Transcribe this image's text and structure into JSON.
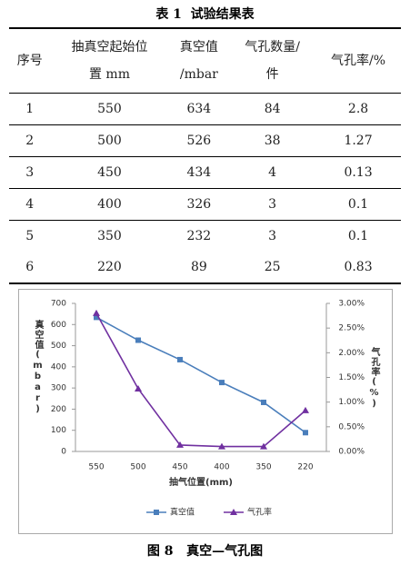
{
  "table_title": "表 1  试验结果表",
  "table": {
    "header": [
      [
        "序号"
      ],
      [
        "抽真空起始位",
        "置 mm"
      ],
      [
        "真空值",
        "/mbar"
      ],
      [
        "气孔数量/",
        "件"
      ],
      [
        "气孔率/%"
      ]
    ],
    "rows": [
      [
        1,
        550,
        634,
        84,
        2.8
      ],
      [
        2,
        500,
        526,
        38,
        1.27
      ],
      [
        3,
        450,
        434,
        4,
        0.13
      ],
      [
        4,
        400,
        326,
        3,
        0.1
      ],
      [
        5,
        350,
        232,
        3,
        0.1
      ],
      [
        6,
        220,
        89,
        25,
        0.83
      ]
    ]
  },
  "chart_data": {
    "type": "line",
    "categories": [
      "550",
      "500",
      "450",
      "400",
      "350",
      "220"
    ],
    "series": [
      {
        "name": "真空值",
        "color": "#4a7ebb",
        "marker": "square",
        "values": [
          634,
          526,
          434,
          326,
          232,
          89
        ]
      },
      {
        "name": "气孔率",
        "color": "#7030a0",
        "marker": "triangle",
        "axis": "y2",
        "values": [
          2.8,
          1.27,
          0.13,
          0.1,
          0.1,
          0.83
        ]
      }
    ],
    "ylim": [
      0,
      700
    ],
    "yticks": [
      0,
      100,
      200,
      300,
      400,
      500,
      600,
      700
    ],
    "y2lim": [
      0,
      3
    ],
    "y2ticks": [
      {
        "value": 0,
        "label": "0.00%"
      },
      {
        "value": 0.5,
        "label": "0.50%"
      },
      {
        "value": 1,
        "label": "1.00%"
      },
      {
        "value": 1.5,
        "label": "1.50%"
      },
      {
        "value": 2,
        "label": "2.00%"
      },
      {
        "value": 2.5,
        "label": "2.50%"
      },
      {
        "value": 3,
        "label": "3.00%"
      }
    ],
    "xlabel": "抽气位置(mm)",
    "ylabel": "真空值(mbar)",
    "y2label": "气孔率(%)",
    "legend": "bottom",
    "grid": false
  },
  "caption": "图 8   真空—气孔图"
}
